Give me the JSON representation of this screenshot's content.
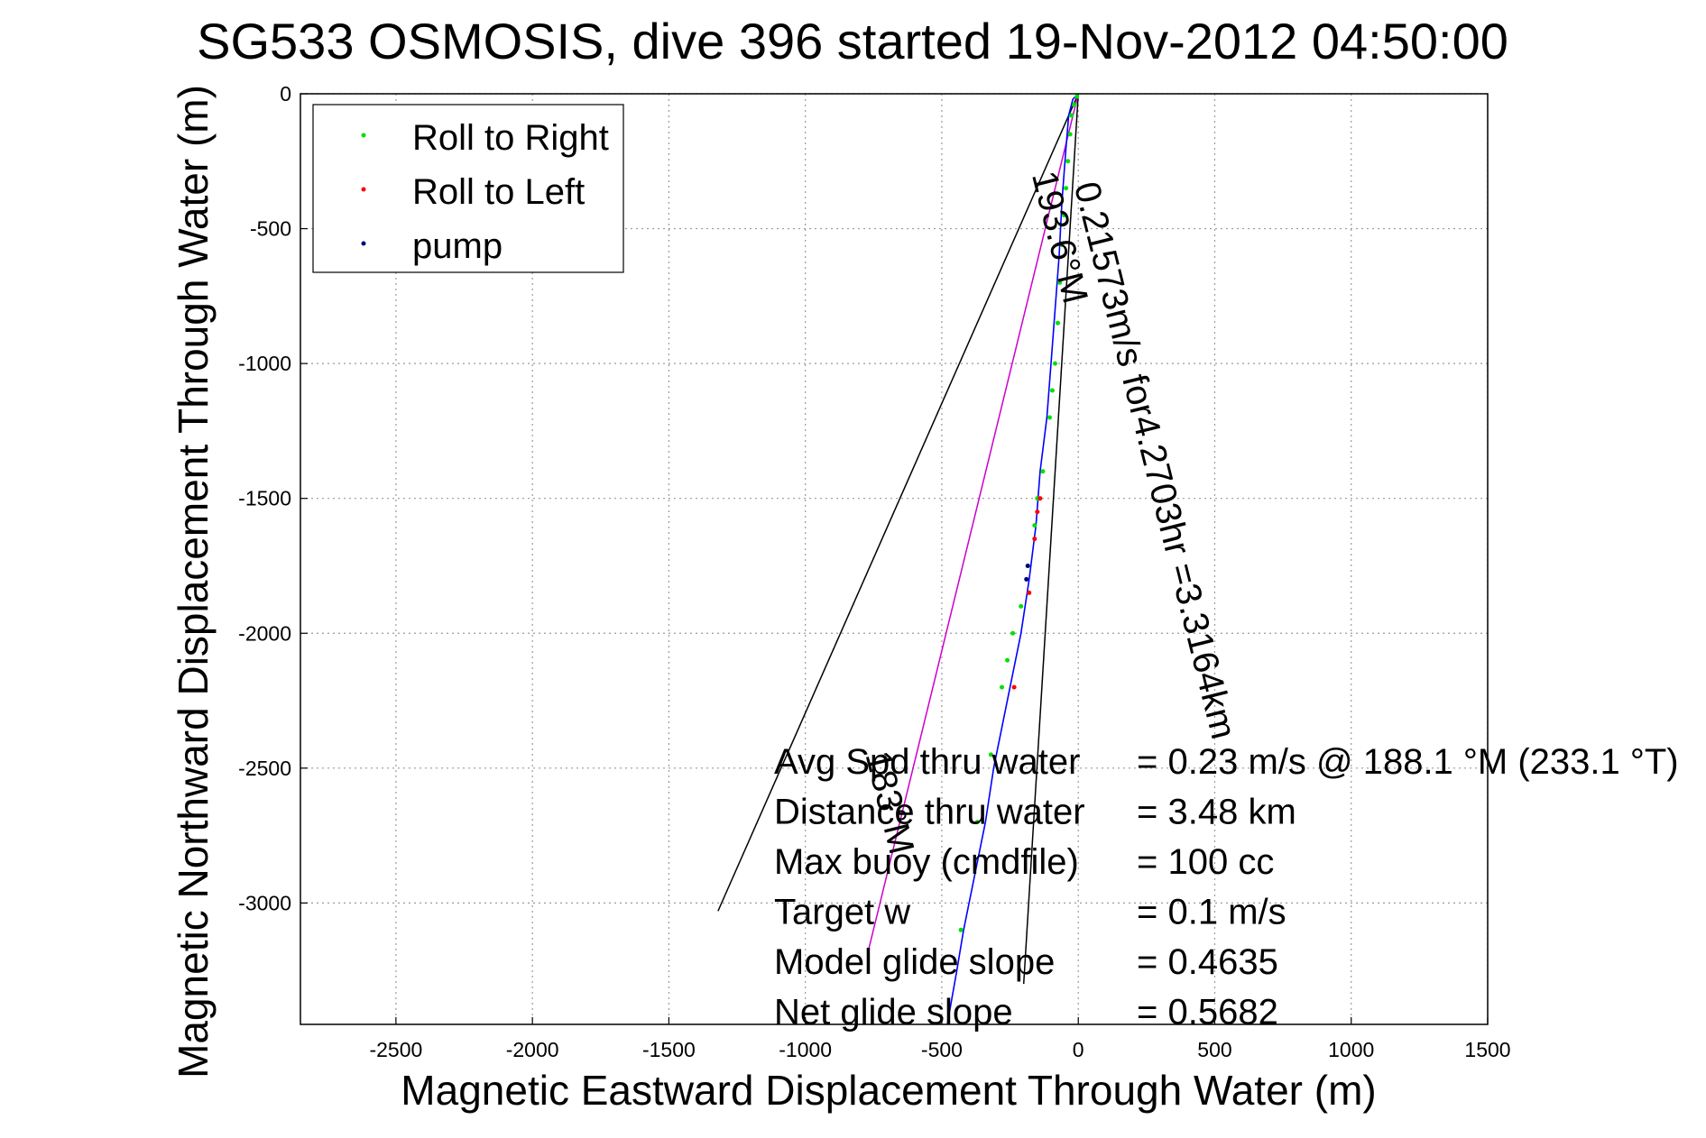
{
  "chart_data": {
    "type": "line",
    "title": "SG533 OSMOSIS, dive 396 started 19-Nov-2012 04:50:00",
    "xlabel": "Magnetic Eastward Displacement Through Water (m)",
    "ylabel": "Magnetic Northward Displacement Through Water (m)",
    "xlim": [
      -2850,
      1500
    ],
    "ylim": [
      -3450,
      0
    ],
    "xticks": [
      -2500,
      -2000,
      -1500,
      -1000,
      -500,
      0,
      500,
      1000,
      1500
    ],
    "yticks": [
      0,
      -500,
      -1000,
      -1500,
      -2000,
      -2500,
      -3000
    ],
    "grid": true,
    "legend_position": "top-left",
    "legend": [
      {
        "label": "Roll to Right",
        "color": "#00e000"
      },
      {
        "label": "Roll to Left",
        "color": "#ff0000"
      },
      {
        "label": "pump",
        "color": "#000080"
      }
    ],
    "track": {
      "color": "#0000ff",
      "points": [
        [
          0,
          0
        ],
        [
          -20,
          -20
        ],
        [
          -35,
          -80
        ],
        [
          -45,
          -200
        ],
        [
          -60,
          -400
        ],
        [
          -70,
          -600
        ],
        [
          -85,
          -800
        ],
        [
          -100,
          -1000
        ],
        [
          -115,
          -1200
        ],
        [
          -140,
          -1400
        ],
        [
          -155,
          -1600
        ],
        [
          -180,
          -1800
        ],
        [
          -210,
          -2000
        ],
        [
          -240,
          -2150
        ],
        [
          -270,
          -2300
        ],
        [
          -310,
          -2500
        ],
        [
          -340,
          -2700
        ],
        [
          -380,
          -2900
        ],
        [
          -420,
          -3100
        ],
        [
          -445,
          -3250
        ],
        [
          -480,
          -3450
        ]
      ]
    },
    "roll_right_points": [
      [
        -5,
        -10
      ],
      [
        -15,
        -40
      ],
      [
        -25,
        -80
      ],
      [
        -30,
        -150
      ],
      [
        -38,
        -250
      ],
      [
        -45,
        -350
      ],
      [
        -52,
        -450
      ],
      [
        -60,
        -560
      ],
      [
        -68,
        -700
      ],
      [
        -75,
        -850
      ],
      [
        -85,
        -1000
      ],
      [
        -95,
        -1100
      ],
      [
        -105,
        -1200
      ],
      [
        -130,
        -1400
      ],
      [
        -150,
        -1500
      ],
      [
        -160,
        -1600
      ],
      [
        -185,
        -1750
      ],
      [
        -210,
        -1900
      ],
      [
        -240,
        -2000
      ],
      [
        -260,
        -2100
      ],
      [
        -280,
        -2200
      ],
      [
        -320,
        -2450
      ],
      [
        -370,
        -2700
      ],
      [
        -430,
        -3100
      ]
    ],
    "roll_left_points": [
      [
        -140,
        -1500
      ],
      [
        -150,
        -1550
      ],
      [
        -160,
        -1650
      ],
      [
        -180,
        -1850
      ],
      [
        -235,
        -2200
      ]
    ],
    "pump_points": [
      [
        -185,
        -1750
      ],
      [
        -190,
        -1800
      ]
    ],
    "reference_lines": [
      {
        "from": [
          0,
          0
        ],
        "to": [
          -1320,
          -3030
        ],
        "color": "#000000"
      },
      {
        "from": [
          0,
          0
        ],
        "to": [
          -200,
          -3300
        ],
        "color": "#000000"
      },
      {
        "from": [
          0,
          0
        ],
        "to": [
          -770,
          -3180
        ],
        "color": "#cc00cc"
      }
    ],
    "annotations": [
      {
        "text": "0.21573m/s for4.2703hr =3.3164km",
        "x": -15,
        "y": -340,
        "angle": 76
      },
      {
        "text": "193.6°M",
        "x": -170,
        "y": -300,
        "angle": 76
      },
      {
        "text": "183°M",
        "x": -780,
        "y": -2450,
        "angle": 76
      }
    ],
    "stats": [
      {
        "label": "Avg Spd thru water",
        "value": "=  0.23 m/s @ 188.1 °M (233.1 °T)"
      },
      {
        "label": "Distance thru water",
        "value": "=  3.48 km"
      },
      {
        "label": "Max buoy (cmdfile)",
        "value": "= 100 cc"
      },
      {
        "label": "Target w",
        "value": "= 0.1 m/s"
      },
      {
        "label": "Model glide slope",
        "value": "= 0.4635"
      },
      {
        "label": "Net glide slope",
        "value": "= 0.5682"
      }
    ]
  }
}
